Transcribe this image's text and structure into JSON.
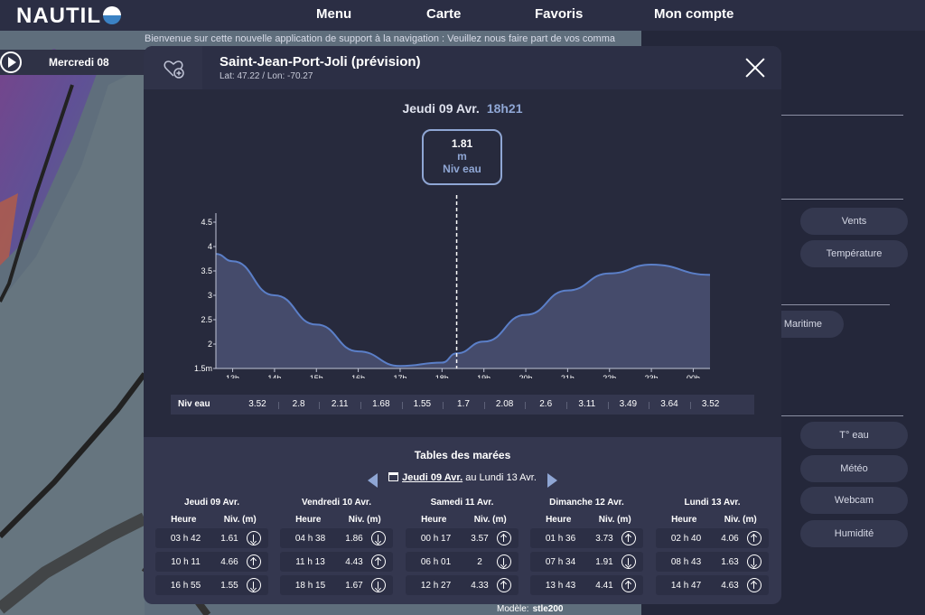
{
  "app": {
    "logo": "NAUTIL"
  },
  "nav": [
    "Menu",
    "Carte",
    "Favoris",
    "Mon compte"
  ],
  "banner": "Bienvenue sur cette nouvelle application de support à la navigation : Veuillez nous faire part de vos comma",
  "map": {
    "date_label": "Mercredi 08"
  },
  "side_buttons": [
    "Vents",
    "Température",
    "Maritime",
    "T° eau",
    "Météo",
    "Webcam",
    "Humidité"
  ],
  "model": {
    "label": "Modèle:",
    "value": "stle200"
  },
  "modal": {
    "title": "Saint-Jean-Port-Joli (prévision)",
    "coords": "Lat: 47.22 / Lon: -70.27",
    "day": "Jeudi 09 Avr.",
    "time": "18h21",
    "readout": {
      "value": "1.81",
      "unit": "m",
      "label": "Niv eau"
    }
  },
  "chart_data": {
    "type": "area",
    "x": [
      "13h",
      "14h",
      "15h",
      "16h",
      "17h",
      "18h",
      "19h",
      "20h",
      "21h",
      "22h",
      "23h",
      "00h"
    ],
    "y_ticks": [
      "4.5",
      "4",
      "3.5",
      "3",
      "2.5",
      "2",
      "1.5m"
    ],
    "ylim": [
      1.5,
      4.5
    ],
    "curve_x": [
      12.6,
      13,
      14,
      15,
      16,
      17,
      18,
      18.35,
      19,
      20,
      21,
      22,
      23,
      0.4
    ],
    "curve_y": [
      3.85,
      3.7,
      3.0,
      2.4,
      1.85,
      1.55,
      1.62,
      1.81,
      2.05,
      2.6,
      3.1,
      3.45,
      3.63,
      3.42
    ],
    "cursor_x": "18h21",
    "series": [
      {
        "name": "Niv eau",
        "values": [
          3.52,
          2.8,
          2.11,
          1.68,
          1.55,
          1.7,
          2.08,
          2.6,
          3.11,
          3.49,
          3.64,
          3.52
        ]
      }
    ]
  },
  "niv_row": {
    "label": "Niv eau",
    "values": [
      "3.52",
      "2.8",
      "2.11",
      "1.68",
      "1.55",
      "1.7",
      "2.08",
      "2.6",
      "3.11",
      "3.49",
      "3.64",
      "3.52"
    ]
  },
  "tides": {
    "title": "Tables des marées",
    "range_start": "Jeudi 09 Avr.",
    "range_end": " au Lundi 13 Avr.",
    "head_hour": "Heure",
    "head_level": "Niv. (m)",
    "days": [
      {
        "name": "Jeudi 09 Avr.",
        "rows": [
          [
            "03 h 42",
            "1.61",
            "down"
          ],
          [
            "10 h 11",
            "4.66",
            "up"
          ],
          [
            "16 h 55",
            "1.55",
            "down"
          ]
        ]
      },
      {
        "name": "Vendredi 10 Avr.",
        "rows": [
          [
            "04 h 38",
            "1.86",
            "down"
          ],
          [
            "11 h 13",
            "4.43",
            "up"
          ],
          [
            "18 h 15",
            "1.67",
            "down"
          ]
        ]
      },
      {
        "name": "Samedi 11 Avr.",
        "rows": [
          [
            "00 h 17",
            "3.57",
            "up"
          ],
          [
            "06 h 01",
            "2",
            "down"
          ],
          [
            "12 h 27",
            "4.33",
            "up"
          ]
        ]
      },
      {
        "name": "Dimanche 12 Avr.",
        "rows": [
          [
            "01 h 36",
            "3.73",
            "up"
          ],
          [
            "07 h 34",
            "1.91",
            "down"
          ],
          [
            "13 h 43",
            "4.41",
            "up"
          ]
        ]
      },
      {
        "name": "Lundi 13 Avr.",
        "rows": [
          [
            "02 h 40",
            "4.06",
            "up"
          ],
          [
            "08 h 43",
            "1.63",
            "down"
          ],
          [
            "14 h 47",
            "4.63",
            "up"
          ]
        ]
      }
    ]
  },
  "colors": {
    "accent": "#8fa6d4",
    "curve": "#5b7fc8",
    "fill": "#454b6b"
  }
}
